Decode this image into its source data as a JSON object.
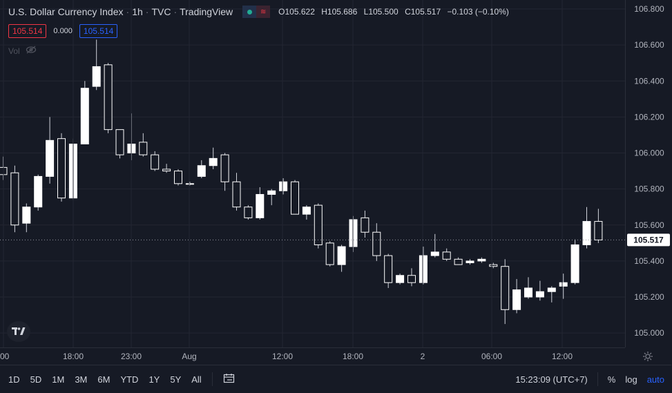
{
  "legend": {
    "title": "U.S. Dollar Currency Index",
    "interval": "1h",
    "exchange": "TVC",
    "source": "TradingView",
    "ohlc": [
      {
        "k": "O",
        "v": "105.622"
      },
      {
        "k": "H",
        "v": "105.686"
      },
      {
        "k": "L",
        "v": "105.500"
      },
      {
        "k": "C",
        "v": "105.517"
      }
    ],
    "change": "−0.103 (−0.10%)"
  },
  "order_boxes": {
    "sell": "105.514",
    "spread": "0.000",
    "buy": "105.514"
  },
  "volume_label": "Vol",
  "price_axis": {
    "ticks": [
      "106.800",
      "106.600",
      "106.400",
      "106.200",
      "106.000",
      "105.800",
      "105.600",
      "105.400",
      "105.200",
      "105.000"
    ],
    "last_price": "105.517"
  },
  "time_axis": {
    "labels": [
      ":00",
      "18:00",
      "23:00",
      "Aug",
      "12:00",
      "18:00",
      "2",
      "06:00",
      "12:00"
    ]
  },
  "bottom_bar": {
    "ranges": [
      "1D",
      "5D",
      "1M",
      "3M",
      "6M",
      "YTD",
      "1Y",
      "5Y",
      "All"
    ],
    "clock": "15:23:09 (UTC+7)",
    "percent": "%",
    "log": "log",
    "auto": "auto"
  },
  "colors": {
    "background": "#161a25",
    "grid": "#232632",
    "up_body": "#ffffff",
    "down_body": "#ffffff",
    "wick": "#d1d4dc",
    "last_price_tag": "#ffffff",
    "accent": "#2962ff",
    "sell": "#f23645"
  },
  "chart_data": {
    "type": "candlestick",
    "ylim": [
      104.92,
      106.85
    ],
    "y_ticks": [
      105.0,
      105.2,
      105.4,
      105.6,
      105.8,
      106.0,
      106.2,
      106.4,
      106.6,
      106.8
    ],
    "candles": [
      {
        "o": 105.92,
        "h": 105.98,
        "l": 105.85,
        "c": 105.88
      },
      {
        "o": 105.89,
        "h": 105.93,
        "l": 105.56,
        "c": 105.6
      },
      {
        "o": 105.61,
        "h": 105.72,
        "l": 105.56,
        "c": 105.7
      },
      {
        "o": 105.7,
        "h": 105.88,
        "l": 105.68,
        "c": 105.87
      },
      {
        "o": 105.87,
        "h": 106.2,
        "l": 105.83,
        "c": 106.07
      },
      {
        "o": 106.08,
        "h": 106.11,
        "l": 105.73,
        "c": 105.75
      },
      {
        "o": 105.75,
        "h": 106.08,
        "l": 105.74,
        "c": 106.05
      },
      {
        "o": 106.05,
        "h": 106.4,
        "l": 106.05,
        "c": 106.36
      },
      {
        "o": 106.37,
        "h": 106.63,
        "l": 106.35,
        "c": 106.48
      },
      {
        "o": 106.49,
        "h": 106.5,
        "l": 106.11,
        "c": 106.13
      },
      {
        "o": 106.13,
        "h": 106.13,
        "l": 105.97,
        "c": 105.99
      },
      {
        "o": 106.0,
        "h": 106.22,
        "l": 105.96,
        "c": 106.05
      },
      {
        "o": 106.06,
        "h": 106.11,
        "l": 105.98,
        "c": 105.99
      },
      {
        "o": 105.99,
        "h": 106.01,
        "l": 105.9,
        "c": 105.91
      },
      {
        "o": 105.91,
        "h": 105.94,
        "l": 105.89,
        "c": 105.9
      },
      {
        "o": 105.9,
        "h": 105.91,
        "l": 105.82,
        "c": 105.83
      },
      {
        "o": 105.83,
        "h": 105.84,
        "l": 105.82,
        "c": 105.83
      },
      {
        "o": 105.87,
        "h": 105.96,
        "l": 105.86,
        "c": 105.93
      },
      {
        "o": 105.93,
        "h": 106.03,
        "l": 105.91,
        "c": 105.97
      },
      {
        "o": 105.99,
        "h": 106.0,
        "l": 105.79,
        "c": 105.84
      },
      {
        "o": 105.84,
        "h": 105.89,
        "l": 105.68,
        "c": 105.7
      },
      {
        "o": 105.7,
        "h": 105.71,
        "l": 105.63,
        "c": 105.64
      },
      {
        "o": 105.64,
        "h": 105.81,
        "l": 105.63,
        "c": 105.77
      },
      {
        "o": 105.77,
        "h": 105.8,
        "l": 105.71,
        "c": 105.79
      },
      {
        "o": 105.79,
        "h": 105.86,
        "l": 105.77,
        "c": 105.84
      },
      {
        "o": 105.84,
        "h": 105.85,
        "l": 105.66,
        "c": 105.66
      },
      {
        "o": 105.66,
        "h": 105.71,
        "l": 105.63,
        "c": 105.7
      },
      {
        "o": 105.71,
        "h": 105.72,
        "l": 105.47,
        "c": 105.49
      },
      {
        "o": 105.5,
        "h": 105.51,
        "l": 105.37,
        "c": 105.38
      },
      {
        "o": 105.38,
        "h": 105.49,
        "l": 105.34,
        "c": 105.48
      },
      {
        "o": 105.48,
        "h": 105.65,
        "l": 105.45,
        "c": 105.63
      },
      {
        "o": 105.64,
        "h": 105.68,
        "l": 105.53,
        "c": 105.56
      },
      {
        "o": 105.56,
        "h": 105.61,
        "l": 105.4,
        "c": 105.43
      },
      {
        "o": 105.43,
        "h": 105.44,
        "l": 105.25,
        "c": 105.28
      },
      {
        "o": 105.28,
        "h": 105.33,
        "l": 105.27,
        "c": 105.32
      },
      {
        "o": 105.32,
        "h": 105.36,
        "l": 105.26,
        "c": 105.28
      },
      {
        "o": 105.28,
        "h": 105.48,
        "l": 105.27,
        "c": 105.43
      },
      {
        "o": 105.43,
        "h": 105.55,
        "l": 105.42,
        "c": 105.45
      },
      {
        "o": 105.45,
        "h": 105.47,
        "l": 105.4,
        "c": 105.41
      },
      {
        "o": 105.41,
        "h": 105.42,
        "l": 105.38,
        "c": 105.38
      },
      {
        "o": 105.39,
        "h": 105.41,
        "l": 105.38,
        "c": 105.4
      },
      {
        "o": 105.4,
        "h": 105.42,
        "l": 105.39,
        "c": 105.41
      },
      {
        "o": 105.38,
        "h": 105.39,
        "l": 105.36,
        "c": 105.37
      },
      {
        "o": 105.37,
        "h": 105.41,
        "l": 105.05,
        "c": 105.13
      },
      {
        "o": 105.13,
        "h": 105.3,
        "l": 105.11,
        "c": 105.24
      },
      {
        "o": 105.2,
        "h": 105.31,
        "l": 105.19,
        "c": 105.25
      },
      {
        "o": 105.2,
        "h": 105.29,
        "l": 105.18,
        "c": 105.23
      },
      {
        "o": 105.23,
        "h": 105.26,
        "l": 105.17,
        "c": 105.25
      },
      {
        "o": 105.26,
        "h": 105.33,
        "l": 105.19,
        "c": 105.28
      },
      {
        "o": 105.28,
        "h": 105.52,
        "l": 105.27,
        "c": 105.49
      },
      {
        "o": 105.49,
        "h": 105.7,
        "l": 105.47,
        "c": 105.62
      },
      {
        "o": 105.62,
        "h": 105.69,
        "l": 105.5,
        "c": 105.517
      }
    ]
  }
}
